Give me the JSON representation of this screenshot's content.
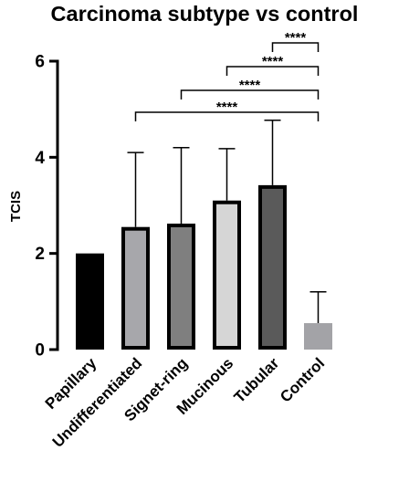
{
  "chart_data": {
    "type": "bar",
    "title": "Carcinoma subtype vs control",
    "xlabel": "",
    "ylabel": "TCIS",
    "ylim": [
      0,
      6
    ],
    "yticks": [
      0,
      2,
      4,
      6
    ],
    "categories": [
      "Papillary",
      "Undifferentiated",
      "Signet-ring",
      "Mucinous",
      "Tubular",
      "Control"
    ],
    "values": [
      2.0,
      2.55,
      2.62,
      3.1,
      3.42,
      0.55
    ],
    "error_upper": [
      null,
      4.1,
      4.2,
      4.18,
      4.77,
      1.2
    ],
    "bar_colors": [
      "#000000",
      "#a7a7ab",
      "#7f7f7f",
      "#d6d6d6",
      "#5a5a5a",
      "#a3a3a7"
    ],
    "bar_outlined": [
      false,
      true,
      true,
      true,
      true,
      false
    ],
    "significance": [
      {
        "from": "Tubular",
        "to": "Control",
        "label": "****"
      },
      {
        "from": "Mucinous",
        "to": "Control",
        "label": "****"
      },
      {
        "from": "Signet-ring",
        "to": "Control",
        "label": "****"
      },
      {
        "from": "Undifferentiated",
        "to": "Control",
        "label": "****"
      }
    ],
    "grid": false,
    "legend": "none"
  }
}
